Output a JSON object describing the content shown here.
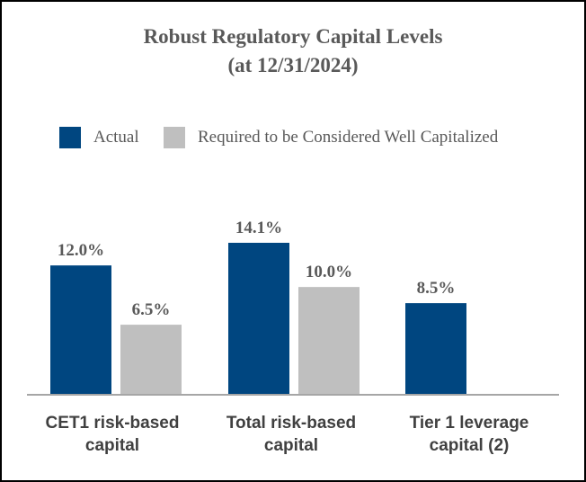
{
  "chart_data": {
    "type": "bar",
    "title": [
      "Robust Regulatory Capital Levels",
      "(at 12/31/2024)"
    ],
    "categories": [
      [
        "CET1 risk-based",
        "capital"
      ],
      [
        "Total risk-based",
        "capital"
      ],
      [
        "Tier 1 leverage",
        "capital (2)"
      ]
    ],
    "series": [
      {
        "name": "Actual",
        "color": "#004680",
        "values": [
          12.0,
          14.1,
          8.5
        ],
        "labels": [
          "12.0%",
          "14.1%",
          "8.5%"
        ]
      },
      {
        "name": "Required to be Considered Well Capitalized",
        "color": "#bfbfbf",
        "values": [
          6.5,
          10.0,
          null
        ],
        "labels": [
          "6.5%",
          "10.0%",
          ""
        ]
      }
    ],
    "ylim": [
      0,
      16
    ],
    "grid": false,
    "legend_position": "top",
    "axis_color": "#a6a6a6",
    "label_color": "#595959"
  }
}
